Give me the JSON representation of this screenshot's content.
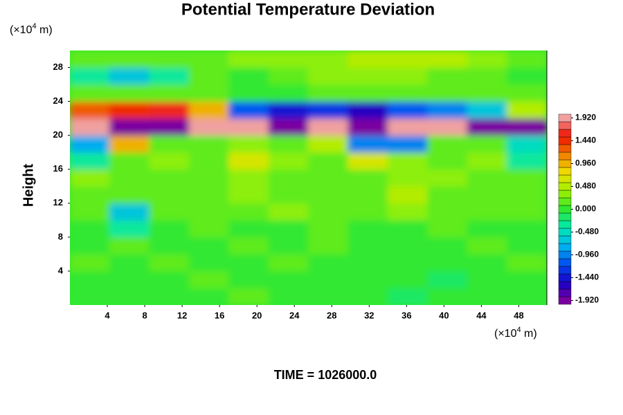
{
  "chart_data": {
    "type": "heatmap",
    "title": "Potential Temperature Deviation",
    "ylabel": "Height",
    "y_unit": {
      "base": "(×10",
      "exponent": "4",
      "suffix": " m)"
    },
    "x_unit": {
      "base": "(×10",
      "exponent": "4",
      "suffix": " m)"
    },
    "annotation": "TIME = 1026000.0",
    "xlim": [
      0,
      51
    ],
    "ylim": [
      0,
      30
    ],
    "xticks": [
      4,
      8,
      12,
      16,
      20,
      24,
      28,
      32,
      36,
      40,
      44,
      48
    ],
    "yticks": [
      4,
      8,
      12,
      16,
      20,
      24,
      28
    ],
    "xbins": [
      0,
      4.25,
      8.5,
      12.75,
      17,
      21.25,
      25.5,
      29.75,
      34,
      38.25,
      42.5,
      46.75,
      51
    ],
    "ybins": [
      0,
      2,
      4,
      6,
      8,
      10,
      12,
      14,
      16,
      18,
      20,
      22,
      24,
      26,
      28,
      30
    ],
    "z": [
      [
        0.0,
        0.05,
        0.0,
        0.05,
        0.1,
        0.0,
        0.05,
        0.0,
        -0.1,
        0.0,
        0.05,
        0.0
      ],
      [
        0.05,
        0.0,
        0.0,
        0.1,
        0.05,
        0.0,
        0.0,
        0.05,
        -0.05,
        -0.1,
        0.0,
        0.05
      ],
      [
        0.1,
        0.05,
        0.1,
        0.0,
        0.05,
        0.1,
        0.0,
        0.05,
        0.0,
        -0.05,
        0.0,
        0.1
      ],
      [
        0.0,
        0.1,
        0.05,
        0.0,
        0.1,
        0.05,
        0.1,
        0.0,
        0.05,
        0.0,
        0.1,
        0.0
      ],
      [
        0.05,
        -0.3,
        0.0,
        0.1,
        0.0,
        0.05,
        0.1,
        0.05,
        0.0,
        0.1,
        0.05,
        0.0
      ],
      [
        0.1,
        -0.6,
        0.15,
        0.2,
        0.1,
        0.3,
        0.2,
        0.1,
        0.3,
        0.2,
        0.1,
        0.1
      ],
      [
        0.2,
        0.1,
        0.15,
        0.1,
        0.25,
        0.1,
        0.2,
        0.15,
        0.5,
        0.2,
        0.1,
        0.15
      ],
      [
        0.3,
        0.2,
        0.1,
        0.2,
        0.3,
        0.2,
        0.15,
        0.2,
        0.3,
        0.25,
        0.2,
        0.1
      ],
      [
        -0.3,
        0.2,
        0.3,
        0.2,
        0.6,
        0.3,
        0.2,
        0.7,
        0.3,
        0.2,
        0.3,
        -0.3
      ],
      [
        -0.8,
        0.9,
        0.2,
        0.1,
        0.3,
        0.2,
        0.4,
        -0.9,
        -0.9,
        0.1,
        0.2,
        -0.5
      ],
      [
        1.9,
        -1.9,
        -1.9,
        1.9,
        1.9,
        -1.9,
        1.9,
        -1.9,
        1.9,
        1.9,
        -1.9,
        -1.9
      ],
      [
        1.2,
        1.5,
        1.6,
        0.9,
        -1.2,
        -1.5,
        -1.3,
        -1.6,
        -1.1,
        -0.9,
        -0.6,
        0.4
      ],
      [
        0.2,
        0.1,
        0.2,
        0.1,
        0.0,
        0.05,
        0.1,
        0.2,
        0.1,
        0.15,
        0.1,
        0.2
      ],
      [
        -0.4,
        -0.6,
        -0.3,
        0.1,
        0.05,
        0.2,
        0.3,
        0.35,
        0.3,
        0.2,
        0.1,
        0.0
      ],
      [
        0.2,
        0.1,
        0.1,
        0.2,
        0.3,
        0.35,
        0.3,
        0.4,
        0.45,
        0.4,
        0.3,
        0.2
      ]
    ],
    "zlim": [
      -2,
      2
    ],
    "colormap": [
      "#7a00a0",
      "#1800c8",
      "#0050f0",
      "#00b4f0",
      "#00e8b0",
      "#30e830",
      "#a0f000",
      "#f0e000",
      "#f08000",
      "#f01000",
      "#f0a0a0"
    ],
    "colorbar_ticks": [
      {
        "value": 1.92,
        "label": "1.920"
      },
      {
        "value": 1.44,
        "label": "1.440"
      },
      {
        "value": 0.96,
        "label": "0.960"
      },
      {
        "value": 0.48,
        "label": "0.480"
      },
      {
        "value": 0,
        "label": "0.000"
      },
      {
        "value": -0.48,
        "label": "-0.480"
      },
      {
        "value": -0.96,
        "label": "-0.960"
      },
      {
        "value": -1.44,
        "label": "-1.440"
      },
      {
        "value": -1.92,
        "label": "-1.920"
      }
    ]
  }
}
